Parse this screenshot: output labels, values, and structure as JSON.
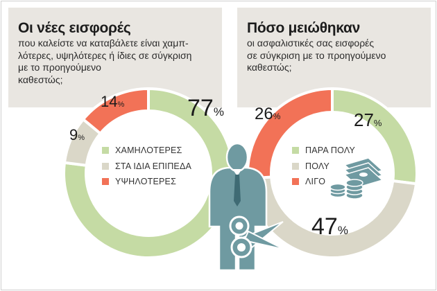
{
  "colors": {
    "green": "#c5dba4",
    "gray": "#dad7c8",
    "orange": "#f27257",
    "panel": "#e9e6e1",
    "figure": "#6f9aa1",
    "text": "#1c1c1c"
  },
  "left": {
    "title": "Οι νέες εισφορές",
    "subtitle_lines": [
      "που καλείστε να καταβάλετε είναι χαμπ-",
      "λότερες, υψηλότερες ή ίδιες σε σύγκριση",
      "με το προηγούμενο",
      "καθεστώς;"
    ],
    "legend": [
      "ΧΑΜΗΛΟΤΕΡΕΣ",
      "ΣΤΑ ΙΔΙΑ ΕΠΙΠΕΔΑ",
      "ΥΨΗΛΟΤΕΡΕΣ"
    ]
  },
  "right": {
    "title": "Πόσο μειώθηκαν",
    "subtitle_lines": [
      "οι ασφαλιστικές σας εισφορές",
      "σε σύγκριση με το προηγούμενο",
      "καθεστώς;"
    ],
    "legend": [
      "ΠΑΡΑ ΠΟΛΥ",
      "ΠΟΛΥ",
      "ΛΙΓΟ"
    ]
  },
  "chart_data": [
    {
      "type": "pie",
      "title": "Οι νέες εισφορές",
      "categories": [
        "ΧΑΜΗΛΟΤΕΡΕΣ",
        "ΣΤΑ ΙΔΙΑ ΕΠΙΠΕΔΑ",
        "ΥΨΗΛΟΤΕΡΕΣ"
      ],
      "values": [
        77,
        9,
        14
      ],
      "unit": "%",
      "colors": [
        "#c5dba4",
        "#dad7c8",
        "#f27257"
      ]
    },
    {
      "type": "pie",
      "title": "Πόσο μειώθηκαν",
      "categories": [
        "ΠΑΡΑ ΠΟΛΥ",
        "ΠΟΛΥ",
        "ΛΙΓΟ"
      ],
      "values": [
        27,
        47,
        26
      ],
      "unit": "%",
      "colors": [
        "#c5dba4",
        "#dad7c8",
        "#f27257"
      ]
    }
  ]
}
